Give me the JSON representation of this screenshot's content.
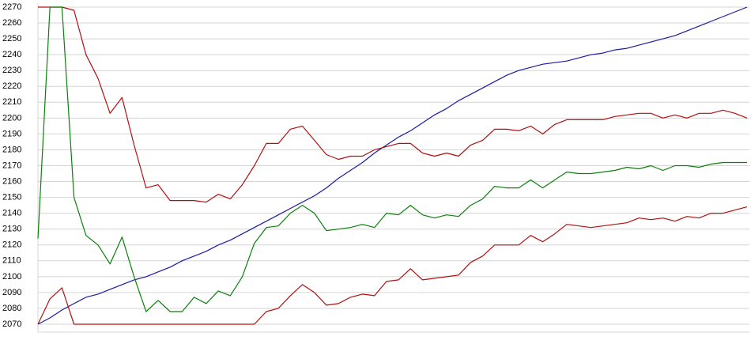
{
  "chart_data": {
    "type": "line",
    "ylim": [
      2070,
      2270
    ],
    "yticks": [
      2070,
      2080,
      2090,
      2100,
      2110,
      2120,
      2130,
      2140,
      2150,
      2160,
      2170,
      2180,
      2190,
      2200,
      2210,
      2220,
      2230,
      2240,
      2250,
      2260,
      2270
    ],
    "grid": true,
    "series": [
      {
        "color": "#1a1aa6",
        "values": [
          2070,
          2074,
          2079,
          2083,
          2087,
          2089,
          2092,
          2095,
          2098,
          2100,
          2103,
          2106,
          2110,
          2113,
          2116,
          2120,
          2123,
          2127,
          2131,
          2135,
          2139,
          2143,
          2147,
          2151,
          2156,
          2162,
          2167,
          2172,
          2178,
          2183,
          2188,
          2192,
          2197,
          2202,
          2206,
          2211,
          2215,
          2219,
          2223,
          2227,
          2230,
          2232,
          2234,
          2235,
          2236,
          2238,
          2240,
          2241,
          2243,
          2244,
          2246,
          2248,
          2250,
          2252,
          2255,
          2258,
          2261,
          2264,
          2267,
          2270
        ]
      },
      {
        "color": "#b01010",
        "values": [
          2270,
          2270,
          2270,
          2268,
          2240,
          2225,
          2203,
          2213,
          2183,
          2156,
          2158,
          2148,
          2148,
          2148,
          2147,
          2152,
          2149,
          2158,
          2170,
          2184,
          2184,
          2193,
          2195,
          2186,
          2177,
          2174,
          2176,
          2176,
          2180,
          2182,
          2184,
          2184,
          2178,
          2176,
          2178,
          2176,
          2183,
          2186,
          2193,
          2193,
          2192,
          2195,
          2190,
          2196,
          2199,
          2199,
          2199,
          2199,
          2201,
          2202,
          2203,
          2203,
          2200,
          2202,
          2200,
          2203,
          2203,
          2205,
          2203,
          2200
        ]
      },
      {
        "color": "#0a800a",
        "values": [
          2124,
          2270,
          2270,
          2150,
          2126,
          2120,
          2108,
          2125,
          2100,
          2078,
          2085,
          2078,
          2078,
          2087,
          2083,
          2091,
          2088,
          2100,
          2121,
          2131,
          2132,
          2140,
          2145,
          2140,
          2129,
          2130,
          2131,
          2133,
          2131,
          2140,
          2139,
          2145,
          2139,
          2137,
          2139,
          2138,
          2145,
          2149,
          2157,
          2156,
          2156,
          2161,
          2156,
          2161,
          2166,
          2165,
          2165,
          2166,
          2167,
          2169,
          2168,
          2170,
          2167,
          2170,
          2170,
          2169,
          2171,
          2172,
          2172,
          2172
        ]
      },
      {
        "color": "#b01010",
        "values": [
          2070,
          2086,
          2093,
          2070,
          2070,
          2070,
          2070,
          2070,
          2070,
          2070,
          2070,
          2070,
          2070,
          2070,
          2070,
          2070,
          2070,
          2070,
          2070,
          2078,
          2080,
          2088,
          2095,
          2090,
          2082,
          2083,
          2087,
          2089,
          2088,
          2097,
          2098,
          2105,
          2098,
          2099,
          2100,
          2101,
          2109,
          2113,
          2120,
          2120,
          2120,
          2126,
          2122,
          2127,
          2133,
          2132,
          2131,
          2132,
          2133,
          2134,
          2137,
          2136,
          2137,
          2135,
          2138,
          2137,
          2140,
          2140,
          2142,
          2144
        ]
      }
    ]
  }
}
